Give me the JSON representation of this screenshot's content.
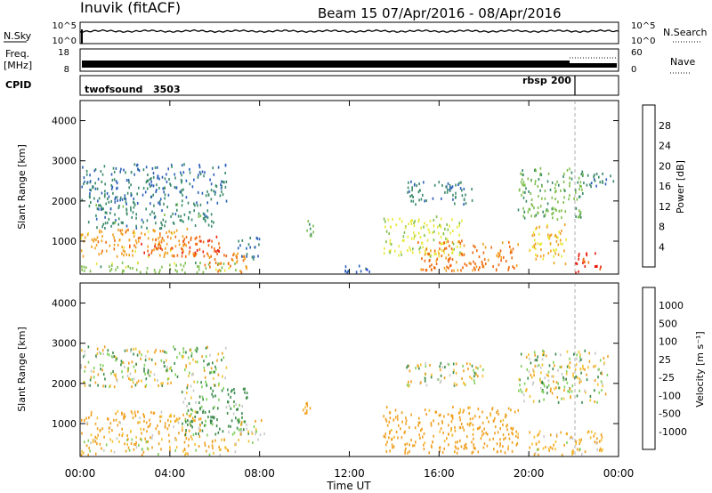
{
  "header": {
    "station": "Inuvik  (fitACF)",
    "beam_date": "Beam 15   07/Apr/2016 - 08/Apr/2016"
  },
  "panels": {
    "nsky": {
      "left_label": "N.Sky",
      "right_label": "N.Search",
      "left_ticks": [
        "10^5",
        "10^0"
      ],
      "right_ticks": [
        "10^5",
        "10^0"
      ]
    },
    "freq": {
      "left_label_top": "Freq.",
      "left_label_bottom": "[MHz]",
      "right_label": "Nave",
      "left_ticks": [
        "18",
        "8"
      ],
      "right_ticks": [
        "60",
        "0"
      ]
    },
    "cpid": {
      "label": "CPID",
      "segments": [
        {
          "name": "twofsound",
          "id": "3503",
          "start_h": 0
        },
        {
          "name": "rbsp",
          "id": "200",
          "start_h": 22
        }
      ]
    }
  },
  "x_axis": {
    "label": "Time UT",
    "ticks": [
      "00:00",
      "04:00",
      "08:00",
      "12:00",
      "16:00",
      "20:00",
      "00:00"
    ],
    "range_h": [
      0,
      24
    ]
  },
  "chart_data": [
    {
      "type": "heatmap",
      "title": "",
      "ylabel": "Slant Range [km]",
      "yticks": [
        1000,
        2000,
        3000,
        4000
      ],
      "ylim": [
        180,
        4500
      ],
      "colorbar": {
        "label": "Power [dB]",
        "ticks": [
          "28",
          "24",
          "20",
          "16",
          "12",
          "8",
          "4"
        ],
        "levels": [
          0,
          4,
          8,
          12,
          16,
          20,
          24,
          28,
          32
        ],
        "colors": [
          "#1a1aff",
          "#2a5fb8",
          "#3a8a6a",
          "#7fbf4f",
          "#e8e83a",
          "#f0a020",
          "#f06a10",
          "#e81c0c"
        ]
      },
      "echo_regions": [
        {
          "t0": 0.0,
          "t1": 5.2,
          "r0": 600,
          "r1": 1300,
          "v": 22
        },
        {
          "t0": 2.5,
          "t1": 6.2,
          "r0": 600,
          "r1": 1100,
          "v": 27
        },
        {
          "t0": 5.5,
          "t1": 7.5,
          "r0": 200,
          "r1": 700,
          "v": 24
        },
        {
          "t0": 0.0,
          "t1": 7.0,
          "r0": 200,
          "r1": 450,
          "v": 14
        },
        {
          "t0": 0.0,
          "t1": 6.5,
          "r0": 1900,
          "r1": 2900,
          "v": 8
        },
        {
          "t0": 0.3,
          "t1": 6.0,
          "r0": 1300,
          "r1": 1900,
          "v": 10
        },
        {
          "t0": 7.0,
          "t1": 8.0,
          "r0": 500,
          "r1": 1100,
          "v": 8
        },
        {
          "t0": 13.5,
          "t1": 17.0,
          "r0": 600,
          "r1": 1600,
          "v": 17
        },
        {
          "t0": 15.0,
          "t1": 19.5,
          "r0": 250,
          "r1": 1000,
          "v": 25
        },
        {
          "t0": 14.5,
          "t1": 17.5,
          "r0": 1900,
          "r1": 2500,
          "v": 9
        },
        {
          "t0": 19.5,
          "t1": 22.5,
          "r0": 1500,
          "r1": 2800,
          "v": 13
        },
        {
          "t0": 20.0,
          "t1": 21.7,
          "r0": 400,
          "r1": 1400,
          "v": 20
        },
        {
          "t0": 22.0,
          "t1": 23.3,
          "r0": 200,
          "r1": 700,
          "v": 29
        },
        {
          "t0": 22.3,
          "t1": 23.8,
          "r0": 2300,
          "r1": 2700,
          "v": 9
        },
        {
          "t0": 9.8,
          "t1": 10.4,
          "r0": 1100,
          "r1": 1500,
          "v": 12
        },
        {
          "t0": 11.5,
          "t1": 13.0,
          "r0": 200,
          "r1": 400,
          "v": 6
        }
      ]
    },
    {
      "type": "heatmap",
      "title": "",
      "ylabel": "Slant Range [km]",
      "yticks": [
        1000,
        2000,
        3000,
        4000
      ],
      "ylim": [
        180,
        4500
      ],
      "colorbar": {
        "label": "Velocity [m s⁻¹]",
        "ticks": [
          "1000",
          "500",
          "100",
          "25",
          "-25",
          "-100",
          "-500",
          "-1000"
        ],
        "levels": [
          -1200,
          -1000,
          -500,
          -100,
          -25,
          25,
          100,
          500,
          1000,
          1200
        ],
        "colors": [
          "#e81c0c",
          "#f06a10",
          "#f0a020",
          "#f5c030",
          "#c8c8c8",
          "#7fd05a",
          "#3a8a4a",
          "#3a6abf",
          "#1a2aff"
        ]
      },
      "echo_regions": [
        {
          "t0": 0.0,
          "t1": 5.5,
          "r0": 600,
          "r1": 1300,
          "v": -200
        },
        {
          "t0": 0.0,
          "t1": 7.0,
          "r0": 200,
          "r1": 600,
          "v": -120
        },
        {
          "t0": 4.5,
          "t1": 7.5,
          "r0": 700,
          "r1": 1900,
          "v": 150
        },
        {
          "t0": 0.0,
          "t1": 6.5,
          "r0": 1900,
          "r1": 2900,
          "v": 0
        },
        {
          "t0": 13.5,
          "t1": 19.5,
          "r0": 250,
          "r1": 1400,
          "v": -250
        },
        {
          "t0": 14.5,
          "t1": 18.0,
          "r0": 1900,
          "r1": 2500,
          "v": 0
        },
        {
          "t0": 19.5,
          "t1": 23.5,
          "r0": 1500,
          "r1": 2800,
          "v": 0
        },
        {
          "t0": 20.0,
          "t1": 23.3,
          "r0": 200,
          "r1": 800,
          "v": -150
        },
        {
          "t0": 9.8,
          "t1": 10.4,
          "r0": 1100,
          "r1": 1500,
          "v": -200
        },
        {
          "t0": 7.0,
          "t1": 8.2,
          "r0": 500,
          "r1": 1100,
          "v": 0
        }
      ]
    }
  ]
}
